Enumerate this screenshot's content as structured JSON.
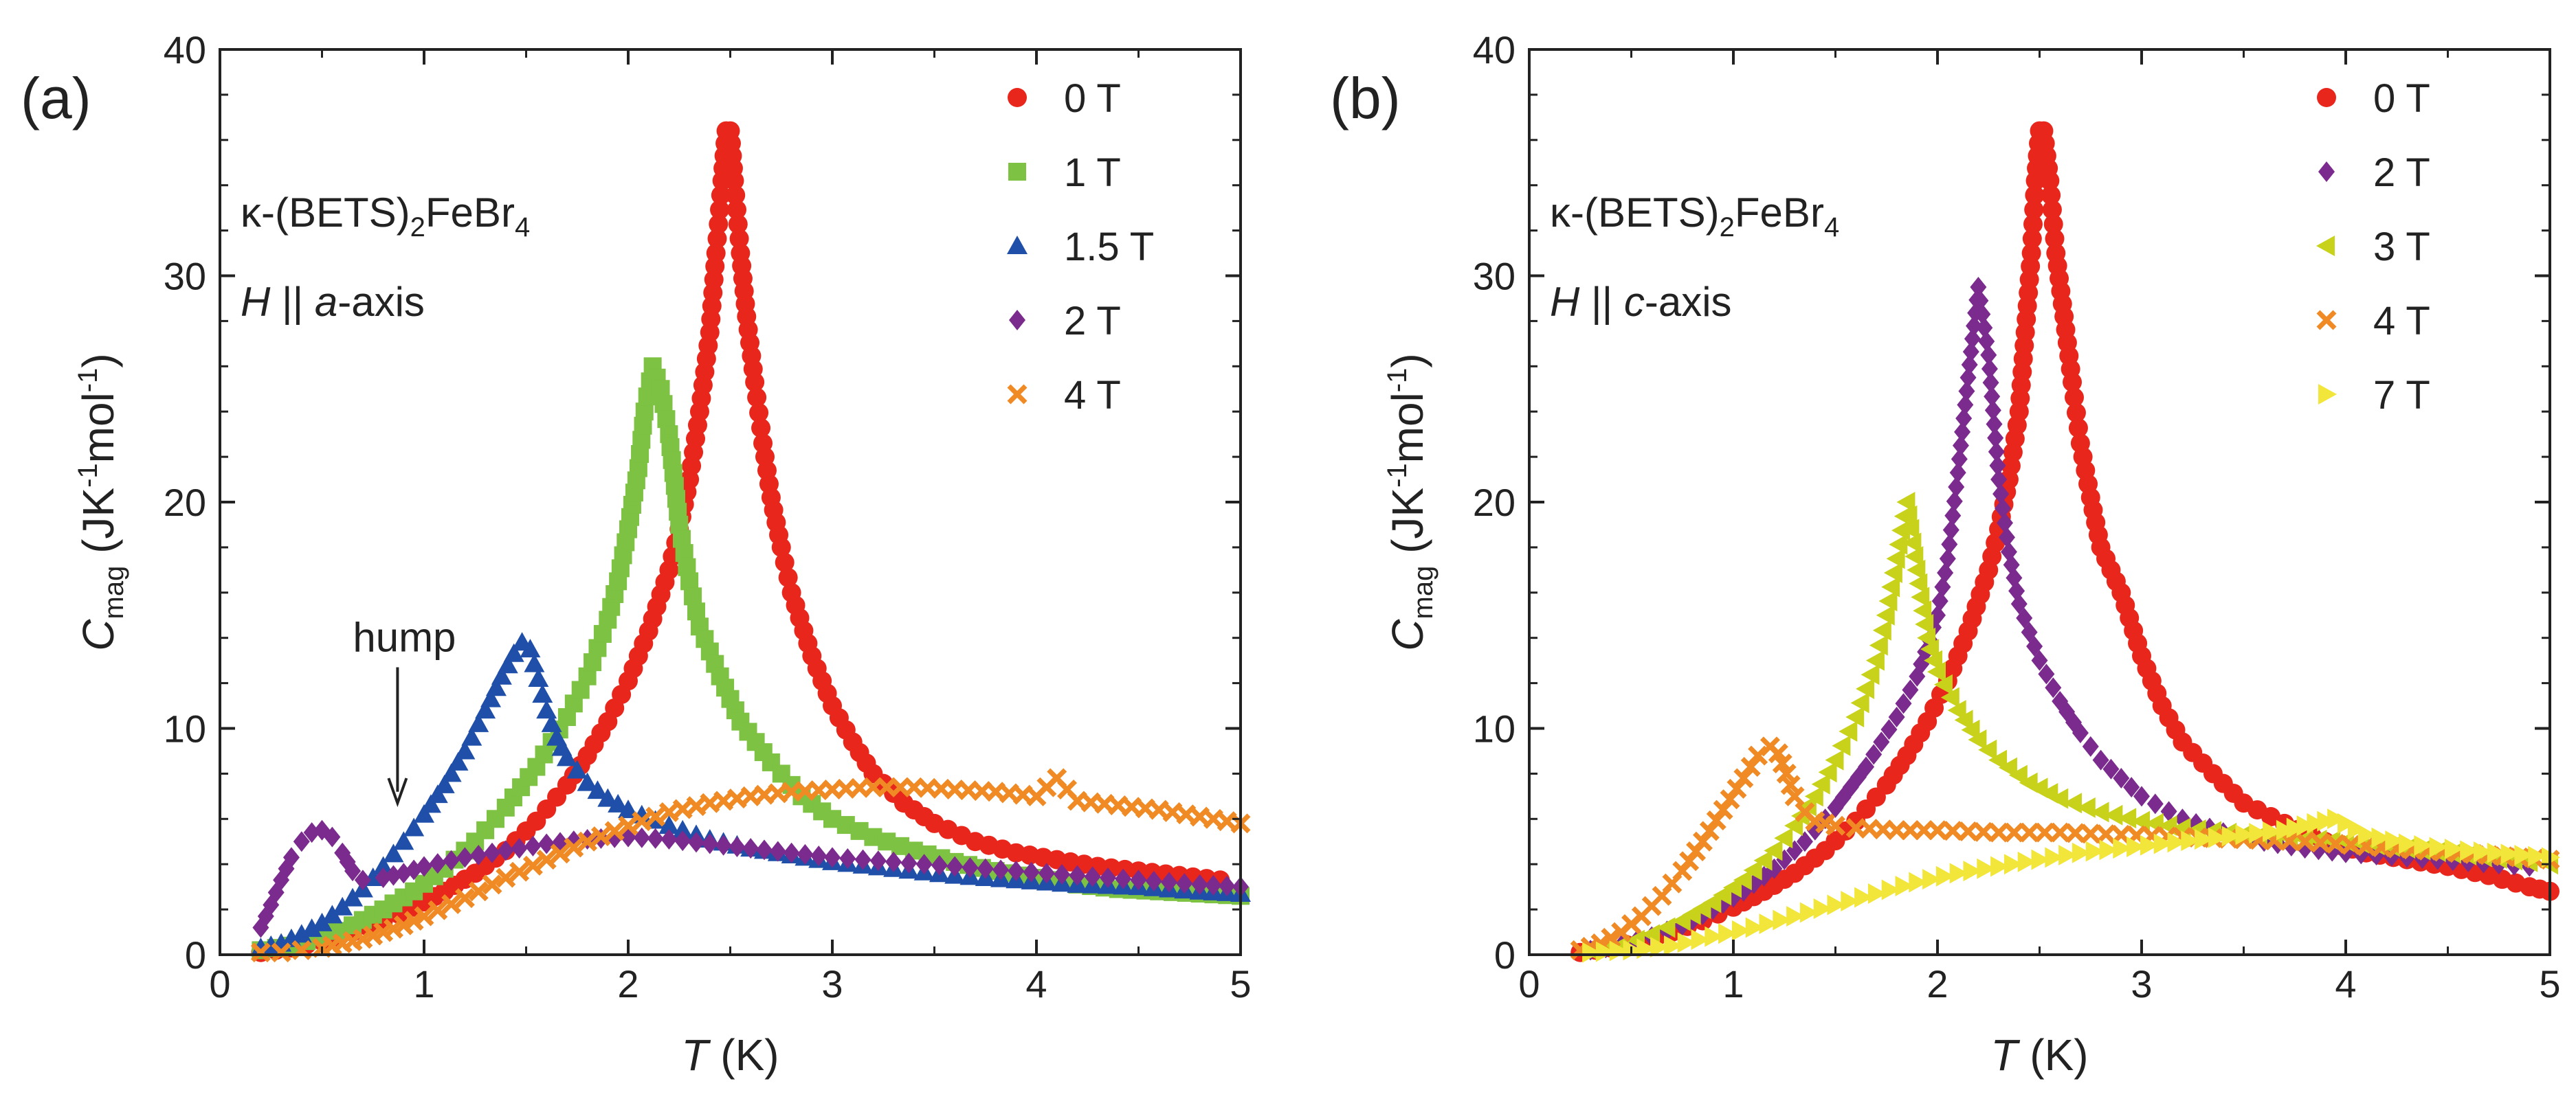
{
  "chart_data": [
    {
      "type": "scatter",
      "panel_label": "(a)",
      "compound": {
        "prefix": "κ-(BETS)",
        "sub": "2",
        "mid": "FeBr",
        "sub2": "4"
      },
      "field_dir": {
        "H": "H",
        "sep": " || ",
        "axis": "a",
        "suffix": "-axis"
      },
      "annotation": "hump",
      "xlabel": {
        "var": "T",
        "unit": " (K)"
      },
      "ylabel": {
        "var": "C",
        "sub": "mag",
        "unit": " (JK",
        "sup1": "-1",
        "mid": "mol",
        "sup2": "-1",
        "end": ")"
      },
      "xlim": [
        0,
        5
      ],
      "ylim": [
        0,
        40
      ],
      "xticks": [
        "0",
        "1",
        "2",
        "3",
        "4",
        "5"
      ],
      "yticks": [
        "0",
        "10",
        "20",
        "30",
        "40"
      ],
      "legend_position": "top-right",
      "series": [
        {
          "name": "0 T",
          "marker": "circle",
          "color": "#e8261c",
          "x": [
            0.2,
            0.35,
            0.5,
            0.65,
            0.8,
            0.95,
            1.1,
            1.25,
            1.4,
            1.55,
            1.7,
            1.8,
            1.9,
            2.0,
            2.1,
            2.2,
            2.25,
            2.3,
            2.35,
            2.4,
            2.43,
            2.46,
            2.48,
            2.5,
            2.52,
            2.55,
            2.58,
            2.62,
            2.66,
            2.7,
            2.75,
            2.8,
            2.9,
            3.0,
            3.1,
            3.2,
            3.35,
            3.5,
            3.7,
            3.9,
            4.1,
            4.3,
            4.5,
            4.7,
            4.9
          ],
          "y": [
            0.1,
            0.3,
            0.6,
            1.0,
            1.5,
            2.1,
            2.8,
            3.6,
            4.6,
            5.9,
            7.5,
            8.8,
            10.3,
            12.1,
            14.3,
            17.0,
            18.8,
            21.0,
            24.0,
            27.5,
            31.0,
            34.2,
            36.4,
            36.4,
            34.2,
            31.0,
            28.2,
            25.3,
            22.6,
            20.2,
            18.0,
            16.0,
            13.2,
            11.0,
            9.4,
            8.0,
            6.7,
            5.8,
            5.0,
            4.5,
            4.2,
            3.9,
            3.7,
            3.5,
            3.3
          ]
        },
        {
          "name": "1 T",
          "marker": "square",
          "color": "#7dc242",
          "x": [
            0.2,
            0.35,
            0.5,
            0.65,
            0.8,
            0.95,
            1.1,
            1.25,
            1.4,
            1.55,
            1.7,
            1.8,
            1.9,
            1.95,
            2.0,
            2.05,
            2.08,
            2.12,
            2.16,
            2.2,
            2.25,
            2.3,
            2.35,
            2.45,
            2.55,
            2.7,
            2.85,
            3.0,
            3.2,
            3.4,
            3.6,
            3.8,
            4.0,
            4.2,
            4.4,
            4.6,
            4.8,
            5.0
          ],
          "y": [
            0.2,
            0.4,
            0.8,
            1.3,
            2.0,
            2.8,
            3.8,
            5.0,
            6.5,
            8.3,
            10.5,
            12.3,
            14.8,
            16.5,
            18.8,
            21.5,
            24.0,
            26.0,
            25.0,
            23.0,
            19.0,
            16.5,
            14.5,
            12.3,
            10.3,
            8.5,
            7.0,
            6.0,
            5.2,
            4.6,
            4.1,
            3.7,
            3.4,
            3.1,
            2.9,
            2.8,
            2.7,
            2.6
          ]
        },
        {
          "name": "1.5 T",
          "marker": "triangle-up",
          "color": "#1f4fa8",
          "x": [
            0.2,
            0.3,
            0.4,
            0.5,
            0.6,
            0.7,
            0.8,
            0.9,
            1.0,
            1.1,
            1.2,
            1.3,
            1.38,
            1.44,
            1.48,
            1.52,
            1.56,
            1.6,
            1.65,
            1.7,
            1.8,
            1.9,
            2.0,
            2.2,
            2.4,
            2.6,
            2.8,
            3.0,
            3.3,
            3.6,
            3.9,
            4.2,
            4.5,
            4.8,
            5.0
          ],
          "y": [
            0.3,
            0.5,
            0.9,
            1.4,
            2.1,
            2.9,
            3.9,
            5.0,
            6.2,
            7.5,
            9.0,
            10.8,
            12.3,
            13.3,
            13.8,
            13.5,
            12.2,
            10.8,
            9.6,
            8.7,
            7.6,
            6.9,
            6.4,
            5.7,
            5.1,
            4.7,
            4.4,
            4.1,
            3.8,
            3.5,
            3.3,
            3.1,
            3.0,
            2.8,
            2.7
          ]
        },
        {
          "name": "2 T",
          "marker": "diamond",
          "color": "#7b2a8e",
          "x": [
            0.2,
            0.25,
            0.3,
            0.35,
            0.4,
            0.45,
            0.5,
            0.55,
            0.6,
            0.65,
            0.7,
            0.8,
            0.9,
            1.0,
            1.2,
            1.4,
            1.6,
            1.8,
            2.0,
            2.2,
            2.4,
            2.6,
            2.8,
            3.0,
            3.3,
            3.6,
            3.9,
            4.2,
            4.5,
            4.8,
            5.0
          ],
          "y": [
            1.2,
            2.2,
            3.3,
            4.3,
            5.0,
            5.4,
            5.5,
            5.2,
            4.5,
            3.7,
            3.3,
            3.4,
            3.6,
            3.9,
            4.3,
            4.6,
            4.9,
            5.1,
            5.2,
            5.1,
            4.9,
            4.7,
            4.5,
            4.3,
            4.1,
            3.9,
            3.7,
            3.5,
            3.3,
            3.1,
            3.0
          ]
        },
        {
          "name": "4 T",
          "marker": "cross",
          "color": "#f08a24",
          "x": [
            0.2,
            0.3,
            0.4,
            0.5,
            0.6,
            0.7,
            0.8,
            0.9,
            1.0,
            1.2,
            1.4,
            1.6,
            1.8,
            2.0,
            2.2,
            2.4,
            2.6,
            2.8,
            3.0,
            3.2,
            3.4,
            3.6,
            3.8,
            4.0,
            4.1,
            4.2,
            4.4,
            4.6,
            4.8,
            5.0
          ],
          "y": [
            0.1,
            0.1,
            0.2,
            0.3,
            0.5,
            0.7,
            1.0,
            1.3,
            1.7,
            2.5,
            3.4,
            4.2,
            5.0,
            5.7,
            6.3,
            6.7,
            7.0,
            7.2,
            7.3,
            7.4,
            7.4,
            7.3,
            7.2,
            7.0,
            7.8,
            6.8,
            6.6,
            6.4,
            6.1,
            5.8
          ]
        }
      ]
    },
    {
      "type": "scatter",
      "panel_label": "(b)",
      "compound": {
        "prefix": "κ-(BETS)",
        "sub": "2",
        "mid": "FeBr",
        "sub2": "4"
      },
      "field_dir": {
        "H": "H",
        "sep": " || ",
        "axis": "c",
        "suffix": "-axis"
      },
      "xlabel": {
        "var": "T",
        "unit": " (K)"
      },
      "ylabel": {
        "var": "C",
        "sub": "mag",
        "unit": " (JK",
        "sup1": "-1",
        "mid": "mol",
        "sup2": "-1",
        "end": ")"
      },
      "xlim": [
        0,
        5
      ],
      "ylim": [
        0,
        40
      ],
      "xticks": [
        "0",
        "1",
        "2",
        "3",
        "4",
        "5"
      ],
      "yticks": [
        "0",
        "10",
        "20",
        "30",
        "40"
      ],
      "legend_position": "top-right",
      "series": [
        {
          "name": "0 T",
          "marker": "circle",
          "color": "#e8261c",
          "x": [
            0.25,
            0.4,
            0.55,
            0.7,
            0.85,
            1.0,
            1.15,
            1.3,
            1.45,
            1.6,
            1.75,
            1.85,
            1.95,
            2.05,
            2.15,
            2.25,
            2.3,
            2.35,
            2.4,
            2.43,
            2.46,
            2.48,
            2.5,
            2.52,
            2.55,
            2.58,
            2.62,
            2.66,
            2.7,
            2.75,
            2.8,
            2.9,
            3.0,
            3.1,
            3.2,
            3.35,
            3.5,
            3.7,
            3.9,
            4.1,
            4.3,
            4.5,
            4.7,
            4.9,
            5.0
          ],
          "y": [
            0.1,
            0.3,
            0.6,
            1.0,
            1.5,
            2.1,
            2.8,
            3.6,
            4.6,
            5.9,
            7.5,
            8.8,
            10.3,
            12.1,
            14.3,
            17.0,
            18.8,
            21.0,
            24.0,
            27.5,
            31.0,
            34.2,
            36.4,
            36.4,
            34.2,
            31.0,
            28.2,
            25.3,
            22.6,
            20.2,
            18.0,
            16.0,
            13.2,
            11.0,
            9.4,
            8.0,
            6.7,
            5.8,
            5.0,
            4.5,
            4.2,
            3.9,
            3.5,
            3.0,
            2.8
          ]
        },
        {
          "name": "2 T",
          "marker": "diamond",
          "color": "#7b2a8e",
          "x": [
            0.3,
            0.45,
            0.6,
            0.75,
            0.9,
            1.05,
            1.2,
            1.35,
            1.5,
            1.65,
            1.8,
            1.9,
            2.0,
            2.05,
            2.1,
            2.15,
            2.2,
            2.25,
            2.3,
            2.35,
            2.4,
            2.5,
            2.6,
            2.7,
            2.8,
            3.0,
            3.2,
            3.4,
            3.6,
            3.8,
            4.0,
            4.3,
            4.6,
            4.9
          ],
          "y": [
            0.2,
            0.4,
            0.8,
            1.3,
            2.0,
            2.8,
            3.8,
            5.0,
            6.5,
            8.3,
            10.5,
            12.3,
            15.0,
            17.5,
            21.3,
            25.5,
            29.5,
            26.5,
            21.0,
            17.8,
            15.5,
            13.0,
            11.2,
            9.8,
            8.6,
            7.0,
            6.0,
            5.4,
            5.0,
            4.7,
            4.5,
            4.3,
            4.1,
            3.9
          ]
        },
        {
          "name": "3 T",
          "marker": "triangle-left",
          "color": "#c9d21b",
          "x": [
            0.3,
            0.45,
            0.6,
            0.75,
            0.9,
            1.05,
            1.2,
            1.3,
            1.4,
            1.5,
            1.6,
            1.7,
            1.75,
            1.8,
            1.85,
            1.9,
            1.95,
            2.0,
            2.1,
            2.2,
            2.3,
            2.45,
            2.6,
            2.8,
            3.0,
            3.2,
            3.5,
            3.8,
            4.0,
            4.3,
            4.6,
            4.9,
            5.0
          ],
          "y": [
            0.2,
            0.4,
            0.9,
            1.5,
            2.3,
            3.3,
            4.6,
            5.7,
            7.0,
            8.6,
            10.5,
            13.0,
            15.0,
            17.5,
            20.0,
            17.0,
            14.0,
            12.5,
            10.8,
            9.5,
            8.6,
            7.6,
            6.9,
            6.3,
            5.9,
            5.6,
            5.3,
            5.1,
            5.0,
            4.7,
            4.4,
            4.1,
            4.0
          ]
        },
        {
          "name": "4 T",
          "marker": "cross",
          "color": "#f08a24",
          "x": [
            0.25,
            0.35,
            0.45,
            0.55,
            0.65,
            0.75,
            0.85,
            0.95,
            1.05,
            1.12,
            1.18,
            1.22,
            1.26,
            1.3,
            1.35,
            1.4,
            1.5,
            1.6,
            1.8,
            2.0,
            2.3,
            2.6,
            2.9,
            3.2,
            3.5,
            3.8,
            4.1,
            4.4,
            4.7,
            5.0
          ],
          "y": [
            0.2,
            0.5,
            1.0,
            1.7,
            2.6,
            3.7,
            5.0,
            6.4,
            7.8,
            8.8,
            9.2,
            8.9,
            8.0,
            7.0,
            6.3,
            5.9,
            5.7,
            5.6,
            5.5,
            5.5,
            5.4,
            5.4,
            5.3,
            5.2,
            5.1,
            5.0,
            4.8,
            4.6,
            4.4,
            4.2
          ]
        },
        {
          "name": "7 T",
          "marker": "triangle-right",
          "color": "#f2e63a",
          "x": [
            0.3,
            0.5,
            0.7,
            0.9,
            1.1,
            1.3,
            1.5,
            1.7,
            1.9,
            2.1,
            2.3,
            2.5,
            2.7,
            2.9,
            3.1,
            3.3,
            3.5,
            3.7,
            3.8,
            3.9,
            3.95,
            4.0,
            4.1,
            4.3,
            4.6,
            5.0
          ],
          "y": [
            0.1,
            0.2,
            0.4,
            0.8,
            1.2,
            1.7,
            2.2,
            2.7,
            3.2,
            3.6,
            3.9,
            4.2,
            4.5,
            4.7,
            4.9,
            5.1,
            5.3,
            5.5,
            5.7,
            5.9,
            6.0,
            5.8,
            5.3,
            4.9,
            4.6,
            4.3
          ]
        }
      ]
    }
  ]
}
